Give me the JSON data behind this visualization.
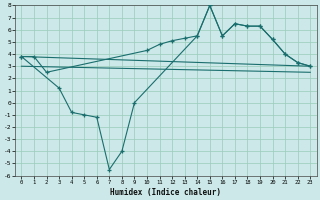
{
  "xlabel": "Humidex (Indice chaleur)",
  "background_color": "#cce8e8",
  "grid_color": "#99ccbb",
  "line_color": "#1a6e6e",
  "xlim": [
    -0.5,
    23.5
  ],
  "ylim": [
    -6,
    8
  ],
  "xticks": [
    0,
    1,
    2,
    3,
    4,
    5,
    6,
    7,
    8,
    9,
    10,
    11,
    12,
    13,
    14,
    15,
    16,
    17,
    18,
    19,
    20,
    21,
    22,
    23
  ],
  "yticks": [
    -6,
    -5,
    -4,
    -3,
    -2,
    -1,
    0,
    1,
    2,
    3,
    4,
    5,
    6,
    7,
    8
  ],
  "line1_x": [
    0,
    1,
    2,
    10,
    11,
    12,
    13,
    14,
    15,
    16,
    17,
    18,
    19,
    20,
    21,
    22,
    23
  ],
  "line1_y": [
    3.8,
    3.8,
    2.5,
    4.3,
    4.8,
    5.1,
    5.3,
    5.5,
    8.0,
    5.5,
    6.5,
    6.3,
    6.3,
    5.2,
    4.0,
    3.3,
    3.0
  ],
  "line2_x": [
    0,
    23
  ],
  "line2_y": [
    3.8,
    3.0
  ],
  "line3_x": [
    0,
    3,
    4,
    5,
    6,
    7,
    8,
    9,
    14,
    15,
    16,
    17,
    18,
    19,
    20,
    21,
    22,
    23
  ],
  "line3_y": [
    3.8,
    1.2,
    -0.8,
    -1.0,
    -1.2,
    -5.5,
    -4.0,
    0.0,
    5.5,
    8.0,
    5.5,
    6.5,
    6.3,
    6.3,
    5.2,
    4.0,
    3.3,
    3.0
  ],
  "line4_x": [
    0,
    23
  ],
  "line4_y": [
    3.0,
    2.5
  ]
}
